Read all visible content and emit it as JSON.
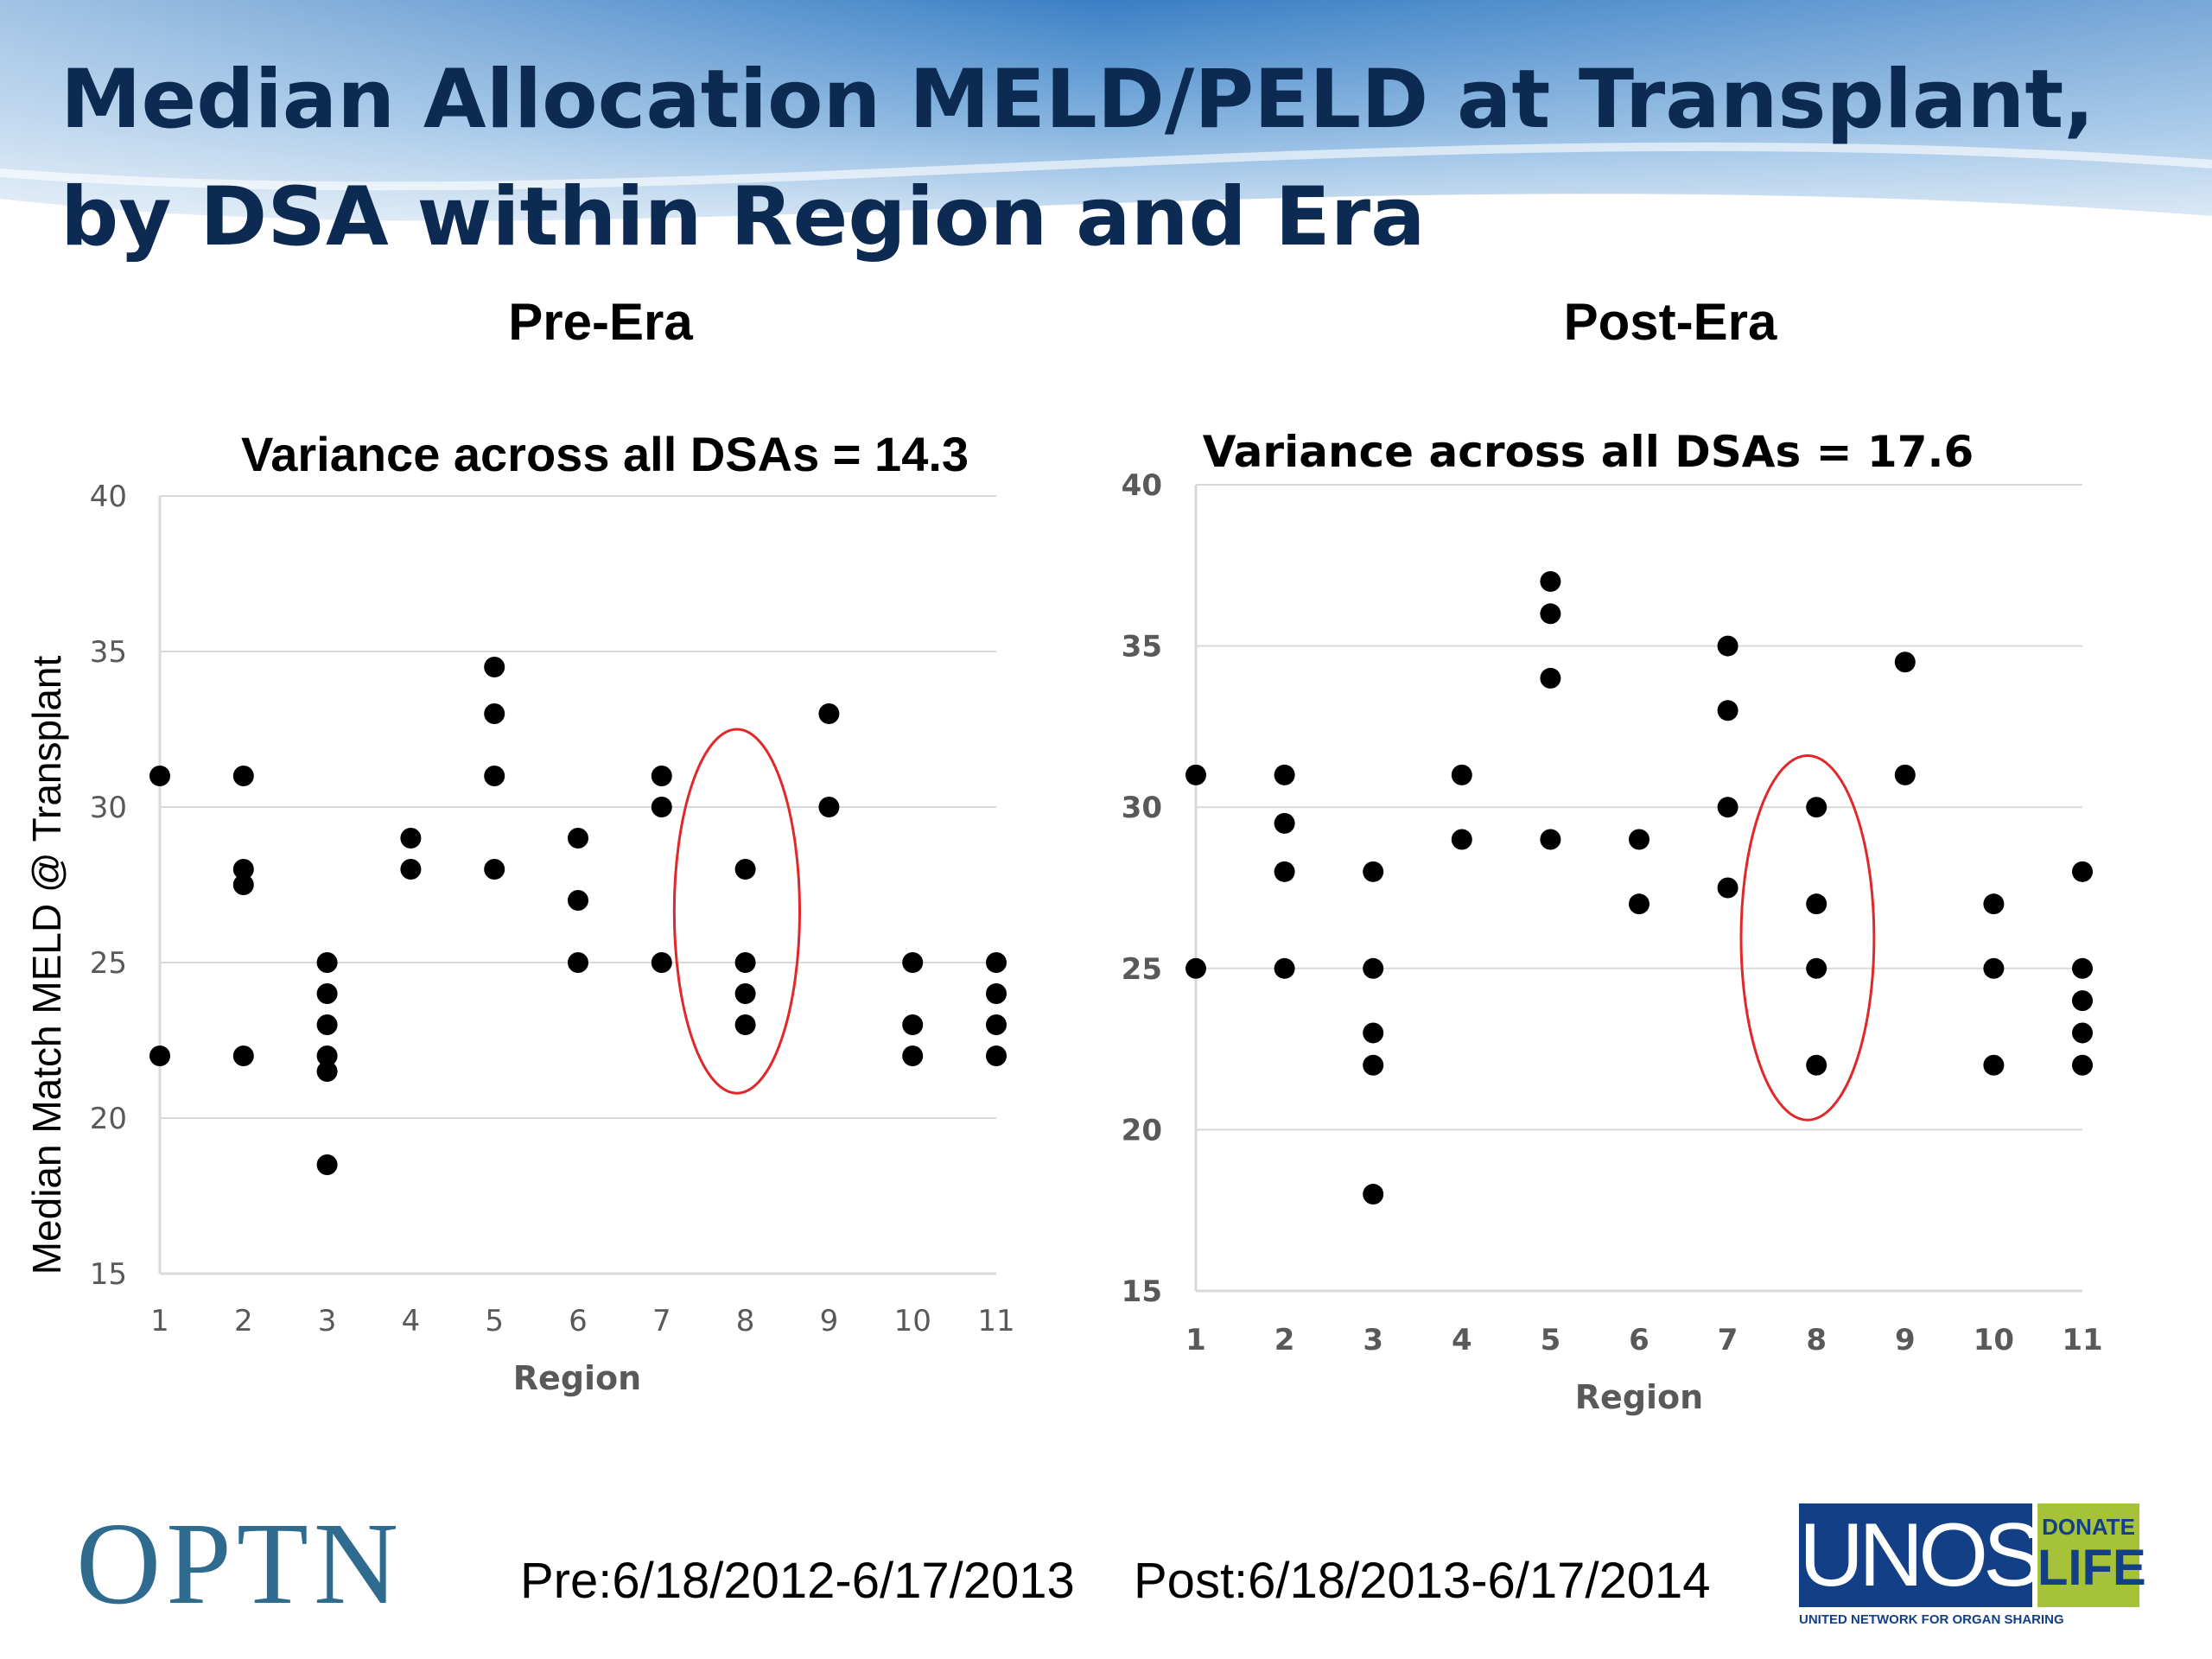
{
  "slide": {
    "title": "Median Allocation MELD/PELD at Transplant, by DSA within Region and Era",
    "footer": {
      "optn_logo_text": "OPTN",
      "pre_dates": "Pre:6/18/2012-6/17/2013",
      "post_dates": "Post:6/18/2013-6/17/2014",
      "unos_logo": {
        "main": "UNOS",
        "donate": "DONATE",
        "life": "LIFE",
        "subtitle": "UNITED NETWORK FOR ORGAN SHARING"
      }
    }
  },
  "colors": {
    "title_text": "#0d2b52",
    "header_blue": "#3f86c8",
    "marker": "#000000",
    "highlight_ellipse": "#e0282a",
    "gridline": "#d9d9d9",
    "axis_text": "#595959",
    "optn_logo": "#2f6a8f",
    "unos_blue": "#123f86",
    "donate_green": "#a6c239"
  },
  "chart_data": [
    {
      "type": "scatter",
      "era_label": "Pre-Era",
      "title": "Variance across all DSAs = 14.3",
      "xlabel": "Region",
      "ylabel": "Median Match MELD @ Transplant",
      "xlim": [
        1,
        11
      ],
      "ylim": [
        15,
        40
      ],
      "x_ticks": [
        1,
        2,
        3,
        4,
        5,
        6,
        7,
        8,
        9,
        10,
        11
      ],
      "y_ticks": [
        15,
        20,
        25,
        30,
        35,
        40
      ],
      "grid": true,
      "highlight_region": 8,
      "highlight_range": [
        20.8,
        32.5
      ],
      "points": [
        {
          "x": 1,
          "y": 31
        },
        {
          "x": 1,
          "y": 22
        },
        {
          "x": 2,
          "y": 31
        },
        {
          "x": 2,
          "y": 28
        },
        {
          "x": 2,
          "y": 27.5
        },
        {
          "x": 2,
          "y": 22
        },
        {
          "x": 3,
          "y": 25
        },
        {
          "x": 3,
          "y": 24
        },
        {
          "x": 3,
          "y": 23
        },
        {
          "x": 3,
          "y": 22
        },
        {
          "x": 3,
          "y": 21.5
        },
        {
          "x": 3,
          "y": 18.5
        },
        {
          "x": 4,
          "y": 29
        },
        {
          "x": 4,
          "y": 28
        },
        {
          "x": 5,
          "y": 34.5
        },
        {
          "x": 5,
          "y": 33
        },
        {
          "x": 5,
          "y": 31
        },
        {
          "x": 5,
          "y": 28
        },
        {
          "x": 6,
          "y": 29
        },
        {
          "x": 6,
          "y": 27
        },
        {
          "x": 6,
          "y": 25
        },
        {
          "x": 7,
          "y": 31
        },
        {
          "x": 7,
          "y": 30
        },
        {
          "x": 7,
          "y": 25
        },
        {
          "x": 8,
          "y": 28
        },
        {
          "x": 8,
          "y": 25
        },
        {
          "x": 8,
          "y": 24
        },
        {
          "x": 8,
          "y": 23
        },
        {
          "x": 9,
          "y": 33
        },
        {
          "x": 9,
          "y": 30
        },
        {
          "x": 10,
          "y": 25
        },
        {
          "x": 10,
          "y": 23
        },
        {
          "x": 10,
          "y": 22
        },
        {
          "x": 11,
          "y": 25
        },
        {
          "x": 11,
          "y": 24
        },
        {
          "x": 11,
          "y": 23
        },
        {
          "x": 11,
          "y": 22
        }
      ]
    },
    {
      "type": "scatter",
      "era_label": "Post-Era",
      "title": "Variance across all DSAs = 17.6",
      "xlabel": "Region",
      "ylabel": "",
      "xlim": [
        1,
        11
      ],
      "ylim": [
        15,
        40
      ],
      "x_ticks": [
        1,
        2,
        3,
        4,
        5,
        6,
        7,
        8,
        9,
        10,
        11
      ],
      "y_ticks": [
        15,
        20,
        25,
        30,
        35,
        40
      ],
      "grid": true,
      "highlight_region": 8,
      "highlight_range": [
        20.3,
        31.6
      ],
      "points": [
        {
          "x": 1,
          "y": 31
        },
        {
          "x": 1,
          "y": 25
        },
        {
          "x": 2,
          "y": 31
        },
        {
          "x": 2,
          "y": 29.5
        },
        {
          "x": 2,
          "y": 28
        },
        {
          "x": 2,
          "y": 25
        },
        {
          "x": 3,
          "y": 28
        },
        {
          "x": 3,
          "y": 25
        },
        {
          "x": 3,
          "y": 23
        },
        {
          "x": 3,
          "y": 22
        },
        {
          "x": 3,
          "y": 18
        },
        {
          "x": 4,
          "y": 31
        },
        {
          "x": 4,
          "y": 29
        },
        {
          "x": 5,
          "y": 37
        },
        {
          "x": 5,
          "y": 36
        },
        {
          "x": 5,
          "y": 34
        },
        {
          "x": 5,
          "y": 29
        },
        {
          "x": 6,
          "y": 29
        },
        {
          "x": 6,
          "y": 27
        },
        {
          "x": 7,
          "y": 35
        },
        {
          "x": 7,
          "y": 33
        },
        {
          "x": 7,
          "y": 30
        },
        {
          "x": 7,
          "y": 27.5
        },
        {
          "x": 8,
          "y": 30
        },
        {
          "x": 8,
          "y": 27
        },
        {
          "x": 8,
          "y": 25
        },
        {
          "x": 8,
          "y": 22
        },
        {
          "x": 9,
          "y": 34.5
        },
        {
          "x": 9,
          "y": 31
        },
        {
          "x": 10,
          "y": 27
        },
        {
          "x": 10,
          "y": 25
        },
        {
          "x": 10,
          "y": 22
        },
        {
          "x": 11,
          "y": 28
        },
        {
          "x": 11,
          "y": 25
        },
        {
          "x": 11,
          "y": 24
        },
        {
          "x": 11,
          "y": 23
        },
        {
          "x": 11,
          "y": 22
        }
      ]
    }
  ]
}
